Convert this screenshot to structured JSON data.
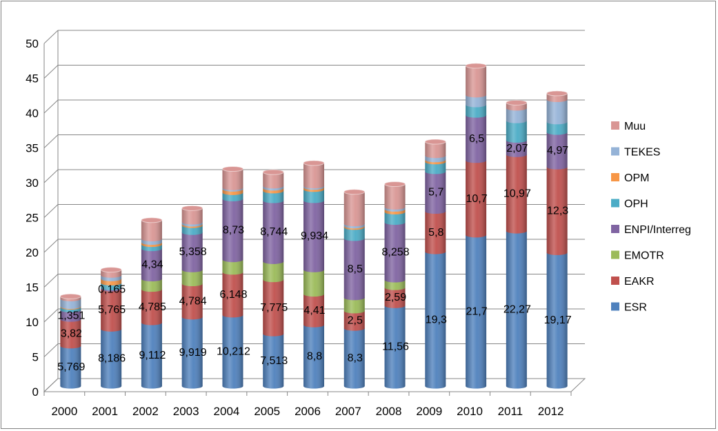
{
  "chart_data": {
    "type": "bar",
    "stacked": true,
    "three_d": true,
    "categories": [
      "2000",
      "2001",
      "2002",
      "2003",
      "2004",
      "2005",
      "2006",
      "2007",
      "2008",
      "2009",
      "2010",
      "2011",
      "2012"
    ],
    "ylim": [
      0,
      50
    ],
    "yticks": [
      0,
      5,
      10,
      15,
      20,
      25,
      30,
      35,
      40,
      45,
      50
    ],
    "grid": true,
    "legend_position": "right",
    "series": [
      {
        "name": "ESR",
        "color": "#4f81bd",
        "values": [
          5.769,
          8.186,
          9.112,
          9.919,
          10.212,
          7.513,
          8.8,
          8.3,
          11.56,
          19.3,
          21.7,
          22.27,
          19.17
        ],
        "labels": [
          "5,769",
          "8,186",
          "9,112",
          "9,919",
          "10,212",
          "7,513",
          "8,8",
          "8,3",
          "11,56",
          "19,3",
          "21,7",
          "22,27",
          "19,17"
        ]
      },
      {
        "name": "EAKR",
        "color": "#c0504d",
        "values": [
          3.82,
          5.765,
          4.785,
          4.784,
          6.148,
          7.775,
          4.41,
          2.5,
          2.59,
          5.8,
          10.7,
          10.97,
          12.3
        ],
        "labels": [
          "3,82",
          "5,765",
          "4,785",
          "4,784",
          "6,148",
          "7,775",
          "4,41",
          "2,5",
          "2,59",
          "5,8",
          "10,7",
          "10,97",
          "12,3"
        ]
      },
      {
        "name": "EMOTR",
        "color": "#9bbb59",
        "values": [
          0,
          0,
          1.5,
          2.0,
          1.8,
          2.6,
          3.5,
          1.9,
          1.1,
          0,
          0,
          0,
          0
        ],
        "labels": [
          "",
          "",
          "",
          "",
          "",
          "",
          "",
          "",
          "",
          "",
          "",
          "",
          ""
        ]
      },
      {
        "name": "ENPI/Interreg",
        "color": "#8064a2",
        "values": [
          1.351,
          0.165,
          4.34,
          5.358,
          8.73,
          8.744,
          9.934,
          8.5,
          8.258,
          5.7,
          6.5,
          2.07,
          4.97
        ],
        "labels": [
          "1,351",
          "0,165",
          "4,34",
          "5,358",
          "8,73",
          "8,744",
          "9,934",
          "8,5",
          "8,258",
          "5,7",
          "6,5",
          "2,07",
          "4,97"
        ]
      },
      {
        "name": "OPH",
        "color": "#4bacc6",
        "values": [
          0.4,
          0.7,
          0.6,
          1.0,
          0.9,
          1.4,
          1.6,
          1.6,
          1.5,
          1.4,
          1.5,
          2.8,
          1.5
        ],
        "labels": [
          "",
          "",
          "",
          "",
          "",
          "",
          "",
          "",
          "",
          "",
          "",
          "",
          ""
        ]
      },
      {
        "name": "OPM",
        "color": "#f79646",
        "values": [
          0.1,
          0.6,
          0.3,
          0.2,
          0.5,
          0.4,
          0.3,
          0.2,
          0.4,
          0.3,
          0,
          0,
          0
        ],
        "labels": [
          "",
          "",
          "",
          "",
          "",
          "",
          "",
          "",
          "",
          "",
          "",
          "",
          ""
        ]
      },
      {
        "name": "TEKES",
        "color": "#95b3d7",
        "values": [
          1.1,
          0.5,
          0.5,
          0.3,
          0.2,
          0.3,
          0.2,
          0.3,
          0.3,
          0.6,
          1.4,
          1.8,
          3.2
        ],
        "labels": [
          "",
          "",
          "",
          "",
          "",
          "",
          "",
          "",
          "",
          "",
          "",
          "",
          ""
        ]
      },
      {
        "name": "Muu",
        "color": "#d99694",
        "values": [
          0.36,
          0.8,
          2.7,
          2.0,
          2.7,
          2.0,
          3.3,
          4.6,
          3.3,
          2.0,
          4.2,
          0.8,
          0.9
        ],
        "labels": [
          "",
          "",
          "",
          "",
          "",
          "",
          "",
          "",
          "",
          "",
          "",
          "",
          ""
        ]
      }
    ]
  }
}
